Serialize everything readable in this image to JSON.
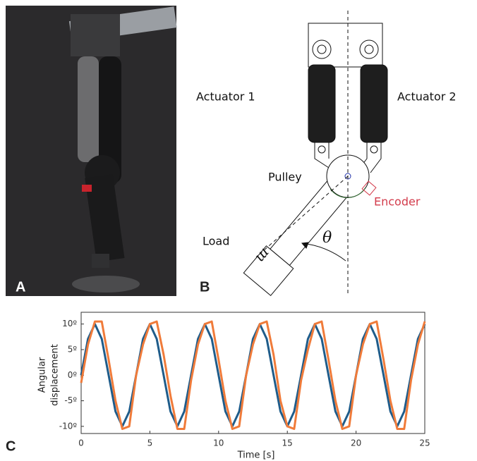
{
  "labels": {
    "panel_a": "A",
    "panel_b": "B",
    "panel_c": "C",
    "actuator_1": "Actuator 1",
    "actuator_2": "Actuator 2",
    "pulley": "Pulley",
    "encoder": "Encoder",
    "load": "Load",
    "mass": "m",
    "angle": "θ"
  },
  "chart_data": {
    "type": "line",
    "xlabel": "Time [s]",
    "ylabel": [
      "Angular",
      "displacement"
    ],
    "x": [
      0,
      0.5,
      1,
      1.5,
      2,
      2.5,
      3,
      3.5,
      4,
      4.5,
      5,
      5.5,
      6,
      6.5,
      7,
      7.5,
      8,
      8.5,
      9,
      9.5,
      10,
      10.5,
      11,
      11.5,
      12,
      12.5,
      13,
      13.5,
      14,
      14.5,
      15,
      15.5,
      16,
      16.5,
      17,
      17.5,
      18,
      18.5,
      19,
      19.5,
      20,
      20.5,
      21,
      21.5,
      22,
      22.5,
      23,
      23.5,
      24,
      24.5,
      25
    ],
    "series": [
      {
        "color": "#1f5c8a",
        "values": [
          0,
          7.1,
          10,
          7.1,
          0,
          -7.1,
          -10,
          -7.1,
          0,
          7.1,
          10,
          7.1,
          0,
          -7.1,
          -10,
          -7.1,
          0,
          7.1,
          10,
          7.1,
          0,
          -7.1,
          -10,
          -7.1,
          0,
          7.1,
          10,
          7.1,
          0,
          -7.1,
          -10,
          -7.1,
          0,
          7.1,
          10,
          7.1,
          0,
          -7.1,
          -10,
          -7.1,
          0,
          7.1,
          10,
          7.1,
          0,
          -7.1,
          -10,
          -7.1,
          0,
          7.1,
          10
        ]
      },
      {
        "color": "#f07b3a",
        "values": [
          -1.5,
          6,
          10.5,
          10.5,
          3,
          -5,
          -10.5,
          -10,
          0,
          6,
          10,
          10.5,
          4,
          -4,
          -10.5,
          -10.5,
          -1,
          6,
          10,
          10.5,
          3,
          -5,
          -10.5,
          -10,
          0,
          6,
          10,
          10.5,
          4,
          -5,
          -10,
          -10.5,
          -1,
          5,
          10,
          10.5,
          3,
          -5,
          -10.5,
          -10,
          0,
          6,
          10,
          10.5,
          3,
          -5,
          -10.5,
          -10.5,
          -1,
          6,
          10.5
        ]
      }
    ],
    "xlim": [
      0,
      25
    ],
    "xticks": [
      0,
      5,
      10,
      15,
      20,
      25
    ],
    "ylim": [
      -11.4,
      12.3
    ],
    "yticks": [
      {
        "value": -10,
        "label": "-10º"
      },
      {
        "value": -5,
        "label": "-5º"
      },
      {
        "value": 0,
        "label": "0º"
      },
      {
        "value": 5,
        "label": "5º"
      },
      {
        "value": 10,
        "label": "10º"
      }
    ]
  }
}
